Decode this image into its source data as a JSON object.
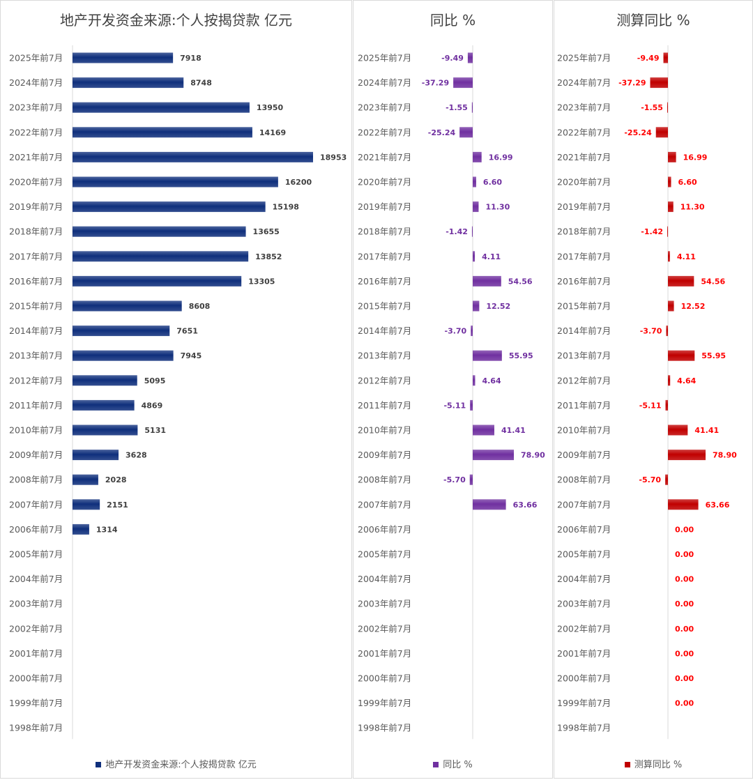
{
  "chart_data": [
    {
      "type": "bar",
      "orientation": "horizontal",
      "title": "地产开发资金来源:个人按揭贷款 亿元",
      "categories": [
        "2025年前7月",
        "2024年前7月",
        "2023年前7月",
        "2022年前7月",
        "2021年前7月",
        "2020年前7月",
        "2019年前7月",
        "2018年前7月",
        "2017年前7月",
        "2016年前7月",
        "2015年前7月",
        "2014年前7月",
        "2013年前7月",
        "2012年前7月",
        "2011年前7月",
        "2010年前7月",
        "2009年前7月",
        "2008年前7月",
        "2007年前7月",
        "2006年前7月",
        "2005年前7月",
        "2004年前7月",
        "2003年前7月",
        "2002年前7月",
        "2001年前7月",
        "2000年前7月",
        "1999年前7月",
        "1998年前7月"
      ],
      "series": [
        {
          "name": "地产开发资金来源:个人按揭贷款 亿元",
          "values": [
            7918,
            8748,
            13950,
            14169,
            18953,
            16200,
            15198,
            13655,
            13852,
            13305,
            8608,
            7651,
            7945,
            5095,
            4869,
            5131,
            3628,
            2028,
            2151,
            1314,
            null,
            null,
            null,
            null,
            null,
            null,
            null,
            null
          ],
          "labels": [
            "7918",
            "8748",
            "13950",
            "14169",
            "18953",
            "16200",
            "15198",
            "13655",
            "13852",
            "13305",
            "8608",
            "7651",
            "7945",
            "5095",
            "4869",
            "5131",
            "3628",
            "2028",
            "2151",
            "1314",
            "",
            "",
            "",
            "",
            "",
            "",
            "",
            ""
          ]
        }
      ],
      "color": "#0f2f7c",
      "label_color": "#404040",
      "grid": false,
      "legend": "bottom"
    },
    {
      "type": "bar",
      "orientation": "horizontal",
      "title": "同比 %",
      "categories": [
        "2025年前7月",
        "2024年前7月",
        "2023年前7月",
        "2022年前7月",
        "2021年前7月",
        "2020年前7月",
        "2019年前7月",
        "2018年前7月",
        "2017年前7月",
        "2016年前7月",
        "2015年前7月",
        "2014年前7月",
        "2013年前7月",
        "2012年前7月",
        "2011年前7月",
        "2010年前7月",
        "2009年前7月",
        "2008年前7月",
        "2007年前7月",
        "2006年前7月",
        "2005年前7月",
        "2004年前7月",
        "2003年前7月",
        "2002年前7月",
        "2001年前7月",
        "2000年前7月",
        "1999年前7月",
        "1998年前7月"
      ],
      "series": [
        {
          "name": "同比 %",
          "values": [
            -9.49,
            -37.29,
            -1.55,
            -25.24,
            16.99,
            6.6,
            11.3,
            -1.42,
            4.11,
            54.56,
            12.52,
            -3.7,
            55.95,
            4.64,
            -5.11,
            41.41,
            78.9,
            -5.7,
            63.66,
            null,
            null,
            null,
            null,
            null,
            null,
            null,
            null,
            null
          ],
          "labels": [
            "-9.49",
            "-37.29",
            "-1.55",
            "-25.24",
            "16.99",
            "6.60",
            "11.30",
            "-1.42",
            "4.11",
            "54.56",
            "12.52",
            "-3.70",
            "55.95",
            "4.64",
            "-5.11",
            "41.41",
            "78.90",
            "-5.70",
            "63.66",
            "",
            "",
            "",
            "",
            "",
            "",
            "",
            "",
            ""
          ]
        }
      ],
      "color": "#7030a0",
      "label_color": "#7030a0",
      "grid": false,
      "legend": "bottom"
    },
    {
      "type": "bar",
      "orientation": "horizontal",
      "title": "测算同比 %",
      "categories": [
        "2025年前7月",
        "2024年前7月",
        "2023年前7月",
        "2022年前7月",
        "2021年前7月",
        "2020年前7月",
        "2019年前7月",
        "2018年前7月",
        "2017年前7月",
        "2016年前7月",
        "2015年前7月",
        "2014年前7月",
        "2013年前7月",
        "2012年前7月",
        "2011年前7月",
        "2010年前7月",
        "2009年前7月",
        "2008年前7月",
        "2007年前7月",
        "2006年前7月",
        "2005年前7月",
        "2004年前7月",
        "2003年前7月",
        "2002年前7月",
        "2001年前7月",
        "2000年前7月",
        "1999年前7月",
        "1998年前7月"
      ],
      "series": [
        {
          "name": "测算同比 %",
          "values": [
            -9.49,
            -37.29,
            -1.55,
            -25.24,
            16.99,
            6.6,
            11.3,
            -1.42,
            4.11,
            54.56,
            12.52,
            -3.7,
            55.95,
            4.64,
            -5.11,
            41.41,
            78.9,
            -5.7,
            63.66,
            0,
            0,
            0,
            0,
            0,
            0,
            0,
            0,
            null
          ],
          "labels": [
            "-9.49",
            "-37.29",
            "-1.55",
            "-25.24",
            "16.99",
            "6.60",
            "11.30",
            "-1.42",
            "4.11",
            "54.56",
            "12.52",
            "-3.70",
            "55.95",
            "4.64",
            "-5.11",
            "41.41",
            "78.90",
            "-5.70",
            "63.66",
            "0.00",
            "0.00",
            "0.00",
            "0.00",
            "0.00",
            "0.00",
            "0.00",
            "0.00",
            ""
          ]
        }
      ],
      "color": "#c00000",
      "label_color": "#ff0000",
      "grid": false,
      "legend": "bottom"
    }
  ]
}
